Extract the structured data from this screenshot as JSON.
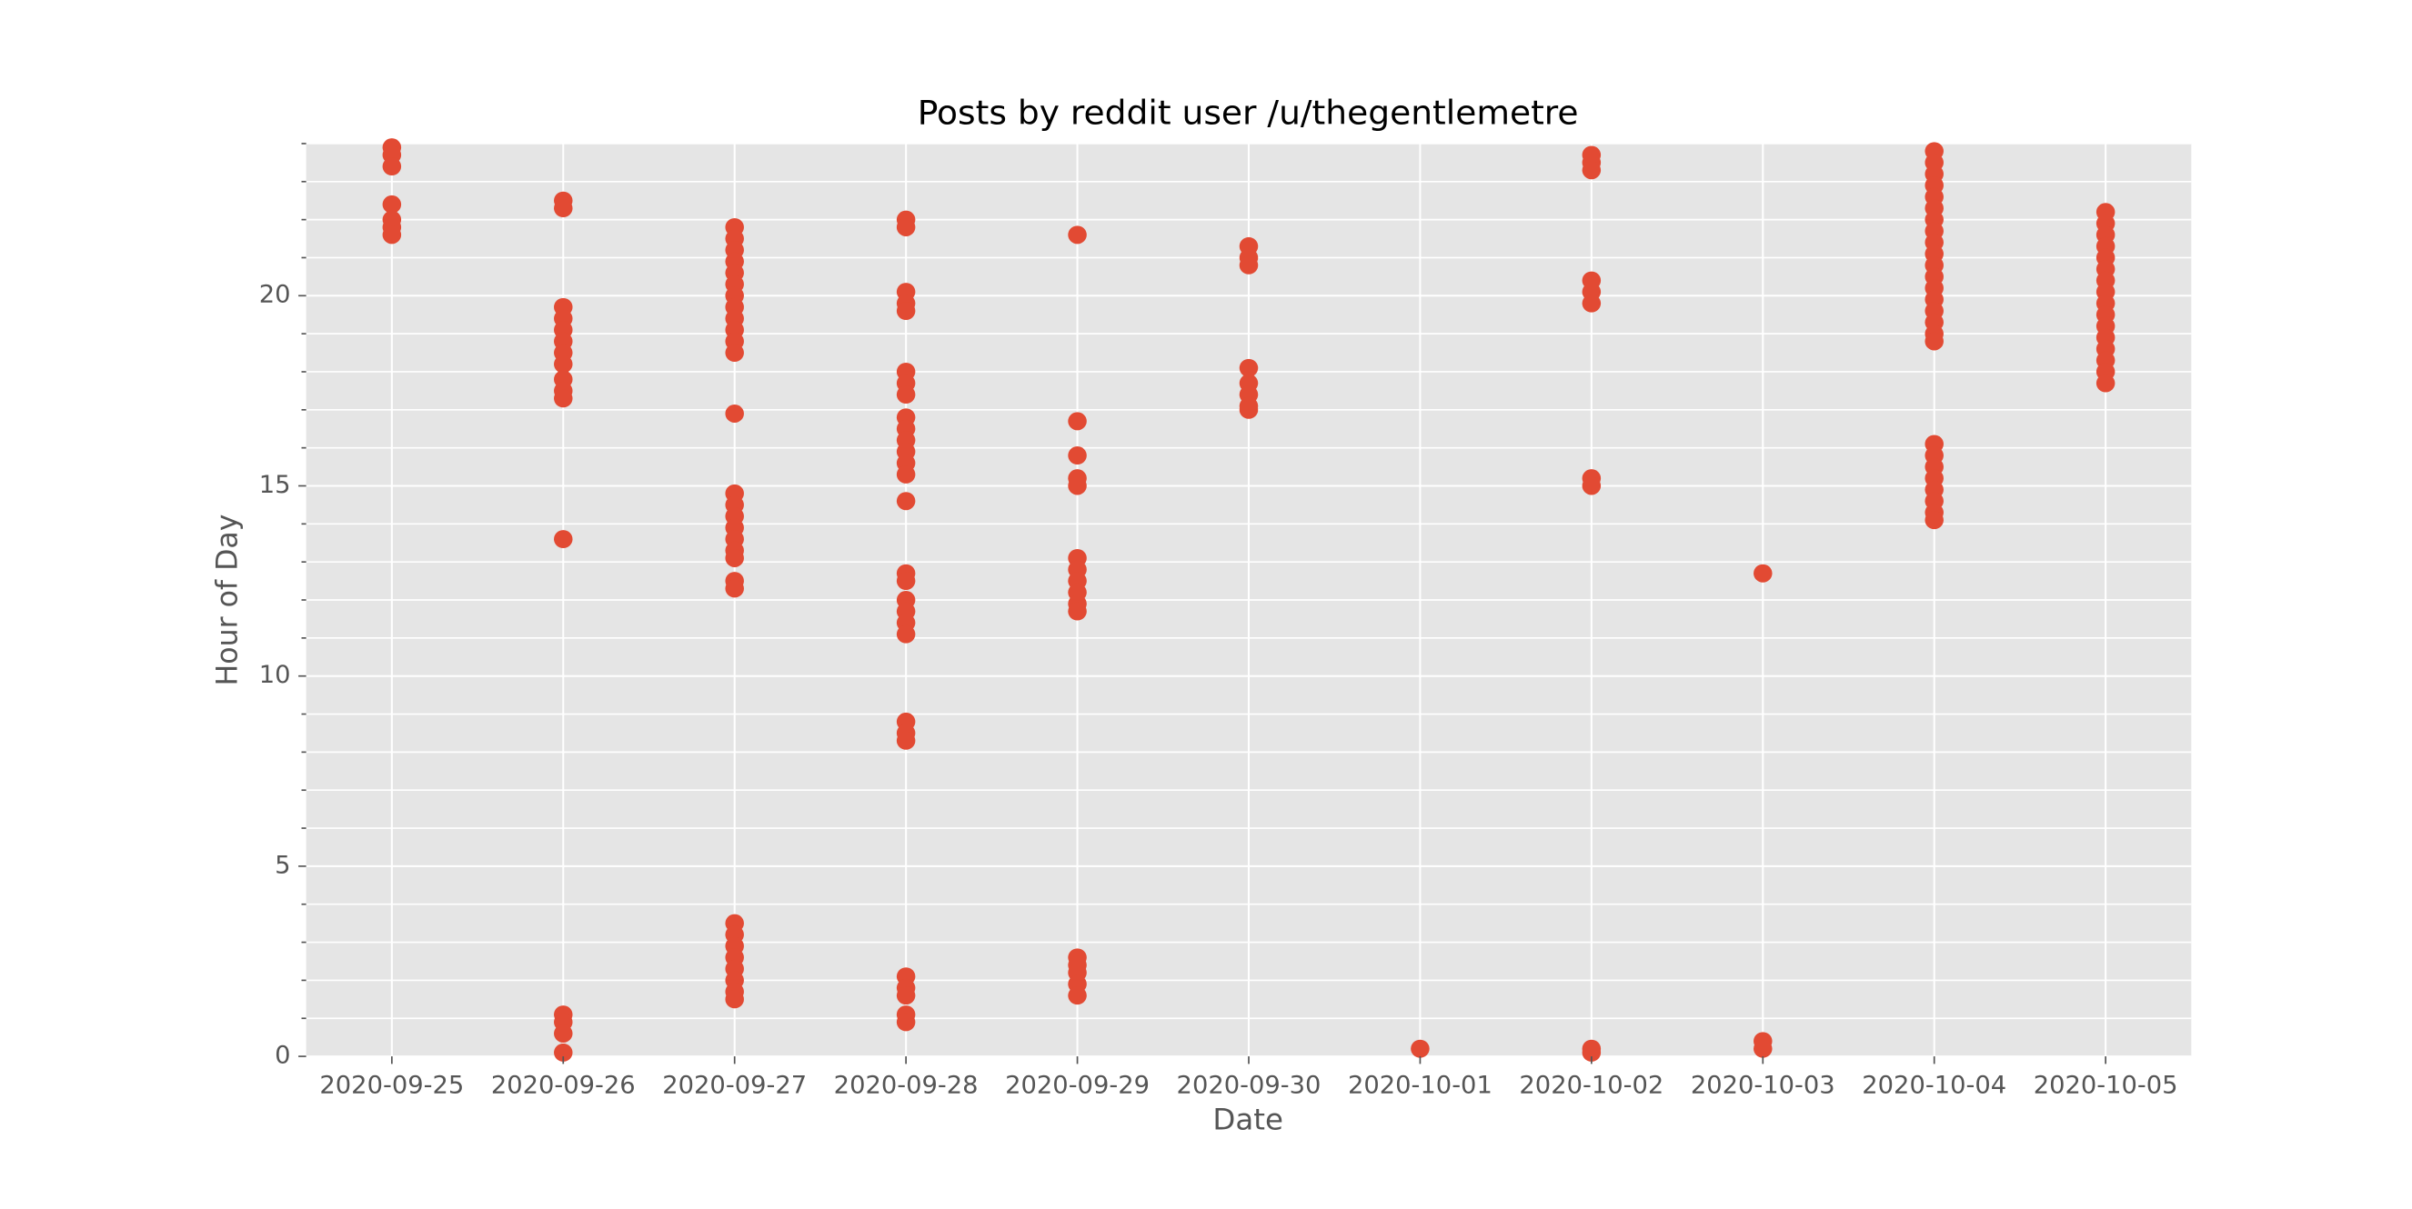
{
  "chart_data": {
    "type": "scatter",
    "title": "Posts by reddit user /u/thegentlemetre",
    "xlabel": "Date",
    "ylabel": "Hour of Day",
    "color": "#e24a33",
    "grid": true,
    "xlim": [
      "2020-09-24T12:00:00Z",
      "2020-10-05T12:00:00Z"
    ],
    "xticks": [
      "2020-09-25",
      "2020-09-26",
      "2020-09-27",
      "2020-09-28",
      "2020-09-29",
      "2020-09-30",
      "2020-10-01",
      "2020-10-02",
      "2020-10-03",
      "2020-10-04",
      "2020-10-05"
    ],
    "ylim": [
      0,
      24
    ],
    "yticks": [
      0,
      5,
      10,
      15,
      20
    ],
    "yminorticks": [
      1,
      2,
      3,
      4,
      6,
      7,
      8,
      9,
      11,
      12,
      13,
      14,
      16,
      17,
      18,
      19,
      21,
      22,
      23,
      24
    ],
    "x": [
      "2020-09-25",
      "2020-09-25",
      "2020-09-25",
      "2020-09-25",
      "2020-09-25",
      "2020-09-25",
      "2020-09-25",
      "2020-09-26",
      "2020-09-26",
      "2020-09-26",
      "2020-09-26",
      "2020-09-26",
      "2020-09-26",
      "2020-09-26",
      "2020-09-26",
      "2020-09-26",
      "2020-09-26",
      "2020-09-26",
      "2020-09-26",
      "2020-09-26",
      "2020-09-26",
      "2020-09-26",
      "2020-09-26",
      "2020-09-27",
      "2020-09-27",
      "2020-09-27",
      "2020-09-27",
      "2020-09-27",
      "2020-09-27",
      "2020-09-27",
      "2020-09-27",
      "2020-09-27",
      "2020-09-27",
      "2020-09-27",
      "2020-09-27",
      "2020-09-27",
      "2020-09-27",
      "2020-09-27",
      "2020-09-27",
      "2020-09-27",
      "2020-09-27",
      "2020-09-27",
      "2020-09-27",
      "2020-09-27",
      "2020-09-27",
      "2020-09-27",
      "2020-09-27",
      "2020-09-27",
      "2020-09-27",
      "2020-09-27",
      "2020-09-27",
      "2020-09-27",
      "2020-09-27",
      "2020-09-28",
      "2020-09-28",
      "2020-09-28",
      "2020-09-28",
      "2020-09-28",
      "2020-09-28",
      "2020-09-28",
      "2020-09-28",
      "2020-09-28",
      "2020-09-28",
      "2020-09-28",
      "2020-09-28",
      "2020-09-28",
      "2020-09-28",
      "2020-09-28",
      "2020-09-28",
      "2020-09-28",
      "2020-09-28",
      "2020-09-28",
      "2020-09-28",
      "2020-09-28",
      "2020-09-28",
      "2020-09-28",
      "2020-09-28",
      "2020-09-28",
      "2020-09-28",
      "2020-09-28",
      "2020-09-28",
      "2020-09-28",
      "2020-09-29",
      "2020-09-29",
      "2020-09-29",
      "2020-09-29",
      "2020-09-29",
      "2020-09-29",
      "2020-09-29",
      "2020-09-29",
      "2020-09-29",
      "2020-09-29",
      "2020-09-29",
      "2020-09-29",
      "2020-09-29",
      "2020-09-29",
      "2020-09-29",
      "2020-09-29",
      "2020-09-30",
      "2020-09-30",
      "2020-09-30",
      "2020-09-30",
      "2020-09-30",
      "2020-09-30",
      "2020-09-30",
      "2020-09-30",
      "2020-10-01",
      "2020-10-02",
      "2020-10-02",
      "2020-10-02",
      "2020-10-02",
      "2020-10-02",
      "2020-10-02",
      "2020-10-02",
      "2020-10-02",
      "2020-10-02",
      "2020-10-02",
      "2020-10-03",
      "2020-10-03",
      "2020-10-03",
      "2020-10-04",
      "2020-10-04",
      "2020-10-04",
      "2020-10-04",
      "2020-10-04",
      "2020-10-04",
      "2020-10-04",
      "2020-10-04",
      "2020-10-04",
      "2020-10-04",
      "2020-10-04",
      "2020-10-04",
      "2020-10-04",
      "2020-10-04",
      "2020-10-04",
      "2020-10-04",
      "2020-10-04",
      "2020-10-04",
      "2020-10-04",
      "2020-10-04",
      "2020-10-04",
      "2020-10-04",
      "2020-10-04",
      "2020-10-04",
      "2020-10-04",
      "2020-10-04",
      "2020-10-05",
      "2020-10-05",
      "2020-10-05",
      "2020-10-05",
      "2020-10-05",
      "2020-10-05",
      "2020-10-05",
      "2020-10-05",
      "2020-10-05",
      "2020-10-05",
      "2020-10-05",
      "2020-10-05",
      "2020-10-05",
      "2020-10-05",
      "2020-10-05",
      "2020-10-05"
    ],
    "values": [
      23.9,
      23.7,
      23.4,
      22.4,
      22.0,
      21.8,
      21.6,
      22.5,
      22.3,
      19.7,
      19.4,
      19.1,
      18.8,
      18.5,
      18.2,
      17.8,
      17.5,
      17.3,
      13.6,
      1.1,
      0.9,
      0.6,
      0.1,
      21.8,
      21.5,
      21.2,
      20.9,
      20.6,
      20.3,
      20.0,
      19.7,
      19.4,
      19.1,
      18.8,
      18.5,
      16.9,
      14.8,
      14.5,
      14.2,
      13.9,
      13.6,
      13.3,
      13.1,
      12.5,
      12.3,
      3.5,
      3.2,
      2.9,
      2.6,
      2.3,
      2.0,
      1.7,
      1.5,
      22.0,
      21.8,
      20.1,
      19.8,
      19.6,
      18.0,
      17.7,
      17.4,
      16.8,
      16.5,
      16.2,
      15.9,
      15.6,
      15.3,
      14.6,
      12.7,
      12.5,
      12.0,
      11.7,
      11.4,
      11.1,
      8.8,
      8.5,
      8.3,
      2.1,
      1.8,
      1.6,
      1.1,
      0.9,
      21.6,
      16.7,
      15.8,
      15.2,
      15.0,
      13.1,
      12.8,
      12.5,
      12.2,
      11.9,
      11.7,
      2.6,
      2.4,
      2.2,
      1.9,
      1.6,
      21.3,
      21.0,
      20.8,
      18.1,
      17.7,
      17.4,
      17.1,
      17.0,
      0.2,
      23.7,
      23.5,
      23.3,
      20.4,
      20.1,
      19.8,
      15.2,
      15.0,
      0.2,
      0.1,
      12.7,
      0.4,
      0.2,
      23.8,
      23.5,
      23.2,
      22.9,
      22.6,
      22.3,
      22.0,
      21.7,
      21.4,
      21.1,
      20.8,
      20.5,
      20.2,
      19.9,
      19.6,
      19.3,
      19.0,
      18.8,
      16.1,
      15.8,
      15.5,
      15.2,
      14.9,
      14.6,
      14.3,
      14.1,
      22.2,
      21.9,
      21.6,
      21.3,
      21.0,
      20.7,
      20.4,
      20.1,
      19.8,
      19.5,
      19.2,
      18.9,
      18.6,
      18.3,
      18.0,
      17.7
    ]
  }
}
